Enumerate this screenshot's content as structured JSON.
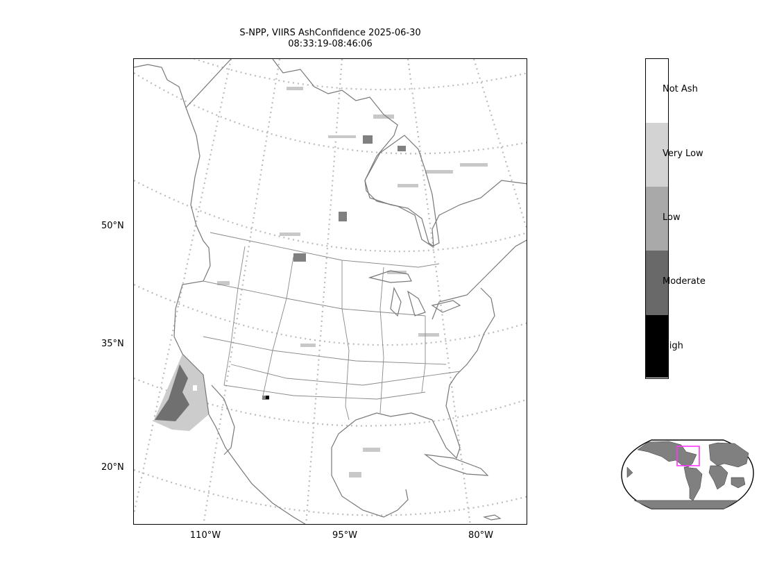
{
  "title": {
    "line1": "S-NPP, VIIRS AshConfidence 2025-06-30",
    "line2": "08:33:19-08:46:06"
  },
  "map": {
    "lat_ticks": [
      "50°N",
      "35°N",
      "20°N"
    ],
    "lon_ticks": [
      "110°W",
      "95°W",
      "80°W"
    ],
    "gridline_color": "#bbbbbb",
    "coastline_color": "#777777",
    "ash_colors": {
      "very_low": "#cccccc",
      "moderate": "#707070",
      "high": "#000000"
    }
  },
  "colorbar": {
    "categories": [
      {
        "label": "Not Ash",
        "color": "#ffffff"
      },
      {
        "label": "Very Low",
        "color": "#d3d3d3"
      },
      {
        "label": "Low",
        "color": "#a9a9a9"
      },
      {
        "label": "Moderate",
        "color": "#696969"
      },
      {
        "label": "High",
        "color": "#000000"
      }
    ]
  },
  "inset": {
    "land_color": "#808080",
    "ocean_color": "#ffffff",
    "extent_box_color": "#ff33ff"
  }
}
